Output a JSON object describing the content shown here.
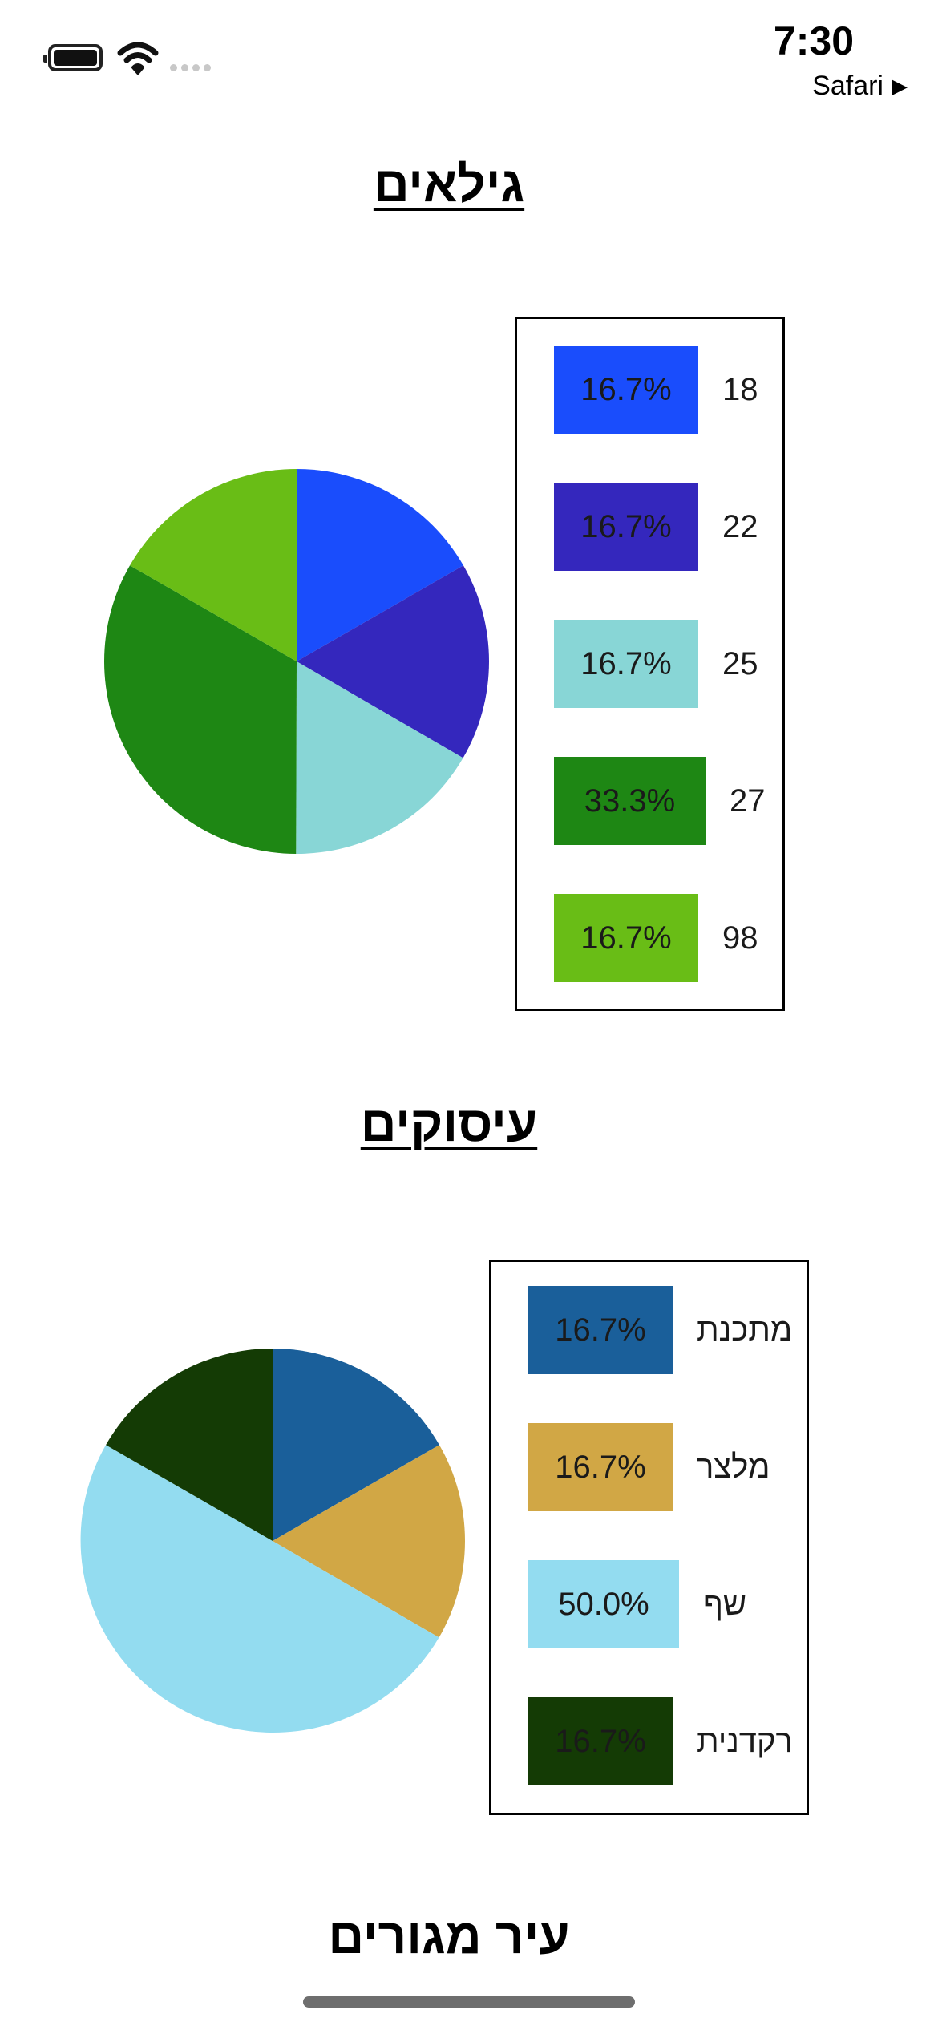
{
  "status_bar": {
    "time": "7:30",
    "back_app": "Safari",
    "back_arrow": "▶"
  },
  "chart_data": [
    {
      "type": "pie",
      "title": "גילאים",
      "categories": [
        "18",
        "22",
        "25",
        "27",
        "98"
      ],
      "values": [
        16.7,
        16.7,
        16.7,
        33.3,
        16.7
      ],
      "labels": [
        "16.7%",
        "16.7%",
        "16.7%",
        "33.3%",
        "16.7%"
      ],
      "colors": [
        "#1a4dfc",
        "#3427bd",
        "#88d6d6",
        "#1e8714",
        "#69bd16"
      ],
      "legend": "right"
    },
    {
      "type": "pie",
      "title": "עיסוקים",
      "categories": [
        "מתכנת",
        "מלצר",
        "שף",
        "רקדנית"
      ],
      "values": [
        16.7,
        16.7,
        50.0,
        16.7
      ],
      "labels": [
        "16.7%",
        "16.7%",
        "50.0%",
        "16.7%"
      ],
      "colors": [
        "#1a5f9a",
        "#d1a745",
        "#93dcf0",
        "#143b05"
      ],
      "legend": "right"
    }
  ],
  "next_section": {
    "title": "עיר מגורים"
  }
}
